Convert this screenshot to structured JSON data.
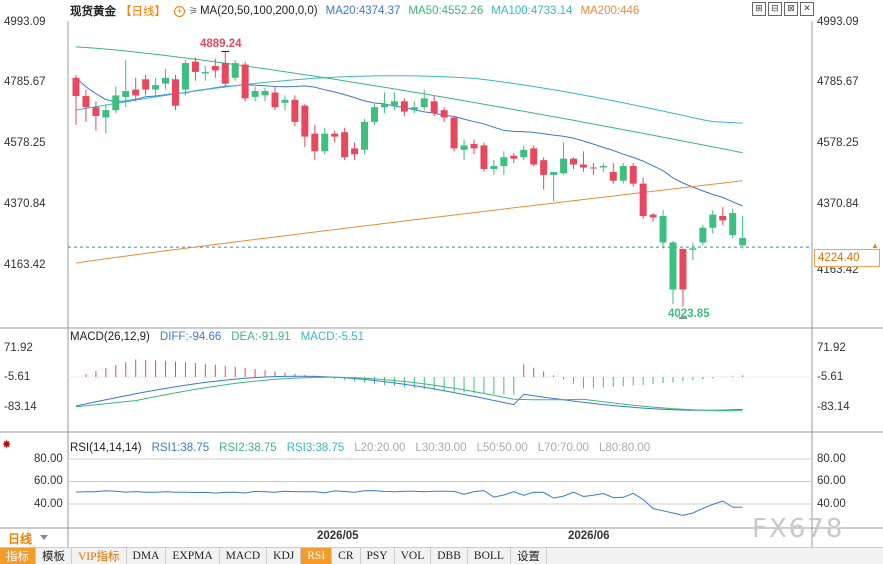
{
  "header": {
    "title": "现货黄金",
    "period_bracket": "【日线】",
    "ma_label": "MA(20,50,100,200,0,0)",
    "ma20": "MA20:4374.37",
    "ma50": "MA50:4552.26",
    "ma100": "MA100:4733.14",
    "ma200": "MA200:446",
    "icons": [
      "plus-circle-icon",
      "kline-icon"
    ]
  },
  "window_buttons": [
    "⊞",
    "⊟",
    "⊠",
    "✕"
  ],
  "price_axis": {
    "labels": [
      "4993.09",
      "4785.67",
      "4578.25",
      "4370.84",
      "4163.42"
    ],
    "right_labels": [
      "4993.09",
      "4785.67",
      "4578.25",
      "4370.84",
      "4163.42"
    ],
    "current_price": "4224.40"
  },
  "annotations": {
    "high": "4889.24",
    "low": "4023.85"
  },
  "macd": {
    "label": "MACD(26,12,9)",
    "diff": "DIFF:-94.66",
    "dea": "DEA:-91.91",
    "macd": "MACD:-5.51",
    "axis_labels": [
      "71.92",
      "-5.61",
      "-83.14"
    ]
  },
  "rsi": {
    "label": "RSI(14,14,14)",
    "rsi1": "RSI1:38.75",
    "rsi2": "RSI2:38.75",
    "rsi3": "RSI3:38.75",
    "l20": "L20:20.00",
    "l30": "L30:30.00",
    "l50": "L50:50.00",
    "l70": "L70:70.00",
    "l80": "L80:80.00",
    "axis_labels": [
      "80.00",
      "60.00",
      "40.00"
    ]
  },
  "dates": [
    "2026/05",
    "2026/06"
  ],
  "period_tab": "日线",
  "watermark": "FX678",
  "toolbar": [
    "指标",
    "模板",
    "VIP指标",
    "DMA",
    "EXPMA",
    "MACD",
    "KDJ",
    "RSI",
    "CR",
    "PSY",
    "VOL",
    "DBB",
    "BOLL",
    "设置"
  ],
  "colors": {
    "up": "#e8485e",
    "down": "#3dbf7f",
    "ma20": "#3a78d8",
    "ma50": "#3cb878",
    "ma100": "#37b8c8",
    "ma200": "#f08a3c",
    "accent": "#f39c2a"
  },
  "candles": [
    [
      4738,
      4800,
      4640,
      4810
    ],
    [
      4700,
      4738,
      4650,
      4760
    ],
    [
      4670,
      4700,
      4620,
      4720
    ],
    [
      4690,
      4665,
      4610,
      4710
    ],
    [
      4740,
      4690,
      4680,
      4770
    ],
    [
      4755,
      4735,
      4700,
      4860
    ],
    [
      4740,
      4760,
      4720,
      4800
    ],
    [
      4760,
      4795,
      4740,
      4810
    ],
    [
      4775,
      4760,
      4740,
      4800
    ],
    [
      4800,
      4780,
      4760,
      4830
    ],
    [
      4705,
      4795,
      4690,
      4810
    ],
    [
      4850,
      4760,
      4740,
      4860
    ],
    [
      4820,
      4855,
      4790,
      4870
    ],
    [
      4820,
      4815,
      4790,
      4840
    ],
    [
      4825,
      4840,
      4800,
      4865
    ],
    [
      4780,
      4850,
      4770,
      4889
    ],
    [
      4850,
      4800,
      4790,
      4860
    ],
    [
      4730,
      4845,
      4720,
      4855
    ],
    [
      4755,
      4735,
      4720,
      4770
    ],
    [
      4755,
      4740,
      4720,
      4765
    ],
    [
      4700,
      4750,
      4690,
      4770
    ],
    [
      4725,
      4715,
      4690,
      4740
    ],
    [
      4650,
      4725,
      4635,
      4740
    ],
    [
      4600,
      4705,
      4565,
      4710
    ],
    [
      4550,
      4610,
      4520,
      4640
    ],
    [
      4610,
      4550,
      4540,
      4630
    ],
    [
      4600,
      4610,
      4580,
      4620
    ],
    [
      4530,
      4615,
      4520,
      4630
    ],
    [
      4540,
      4560,
      4520,
      4580
    ],
    [
      4650,
      4555,
      4540,
      4660
    ],
    [
      4700,
      4650,
      4640,
      4710
    ],
    [
      4710,
      4700,
      4680,
      4750
    ],
    [
      4720,
      4705,
      4690,
      4750
    ],
    [
      4685,
      4720,
      4670,
      4730
    ],
    [
      4700,
      4690,
      4680,
      4720
    ],
    [
      4730,
      4700,
      4690,
      4760
    ],
    [
      4680,
      4720,
      4670,
      4740
    ],
    [
      4665,
      4690,
      4650,
      4700
    ],
    [
      4560,
      4665,
      4550,
      4670
    ],
    [
      4570,
      4555,
      4520,
      4590
    ],
    [
      4560,
      4575,
      4540,
      4590
    ],
    [
      4490,
      4570,
      4480,
      4580
    ],
    [
      4500,
      4490,
      4470,
      4520
    ],
    [
      4530,
      4500,
      4470,
      4550
    ],
    [
      4525,
      4535,
      4510,
      4545
    ],
    [
      4555,
      4530,
      4520,
      4570
    ],
    [
      4505,
      4560,
      4500,
      4570
    ],
    [
      4470,
      4520,
      4420,
      4530
    ],
    [
      4480,
      4470,
      4380,
      4480
    ],
    [
      4525,
      4475,
      4470,
      4580
    ],
    [
      4505,
      4525,
      4490,
      4530
    ],
    [
      4495,
      4505,
      4480,
      4550
    ],
    [
      4495,
      4495,
      4470,
      4510
    ],
    [
      4500,
      4495,
      4480,
      4510
    ],
    [
      4450,
      4480,
      4440,
      4510
    ],
    [
      4500,
      4450,
      4440,
      4510
    ],
    [
      4440,
      4500,
      4430,
      4510
    ],
    [
      4330,
      4440,
      4320,
      4460
    ],
    [
      4325,
      4335,
      4310,
      4340
    ],
    [
      4330,
      4240,
      4220,
      4350
    ],
    [
      4240,
      4080,
      4030,
      4245
    ],
    [
      4080,
      4218,
      4023,
      4220
    ],
    [
      4220,
      4215,
      4180,
      4240
    ],
    [
      4290,
      4240,
      4230,
      4300
    ],
    [
      4335,
      4290,
      4270,
      4350
    ],
    [
      4315,
      4330,
      4300,
      4360
    ],
    [
      4340,
      4265,
      4255,
      4355
    ],
    [
      4255,
      4230,
      4220,
      4330
    ]
  ]
}
